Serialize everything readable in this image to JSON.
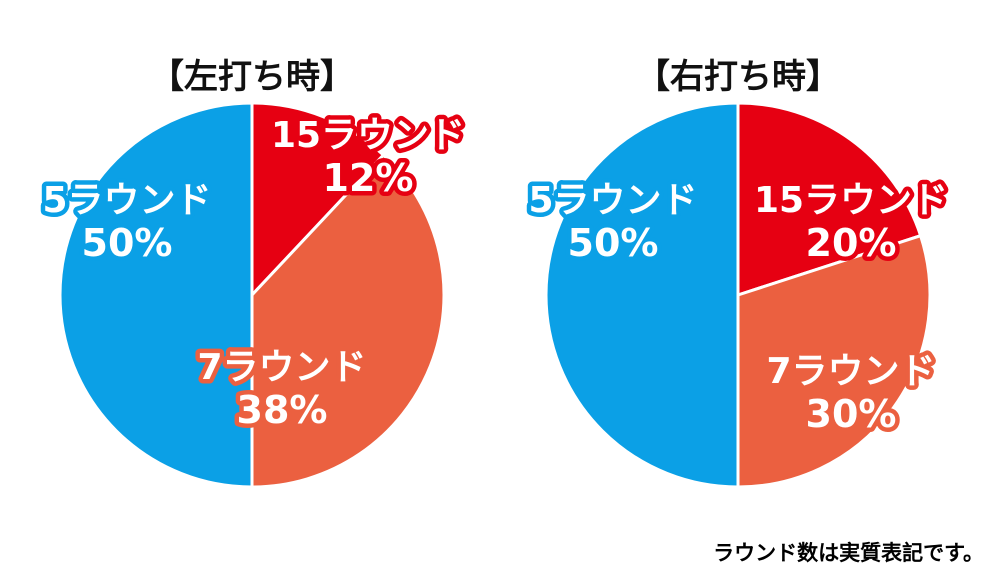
{
  "colors": {
    "round_15": "#e60012",
    "round_7": "#eb6040",
    "round_5": "#0ba0e6",
    "title": "#111111",
    "label_text": "#ffffff"
  },
  "chart_data": [
    {
      "type": "pie",
      "title": "【左打ち時】",
      "slices": [
        {
          "name": "15ラウンド",
          "value": 12,
          "value_label": "12%",
          "color_key": "round_15"
        },
        {
          "name": "7ラウンド",
          "value": 38,
          "value_label": "38%",
          "color_key": "round_7"
        },
        {
          "name": "5ラウンド",
          "value": 50,
          "value_label": "50%",
          "color_key": "round_5"
        }
      ]
    },
    {
      "type": "pie",
      "title": "【右打ち時】",
      "slices": [
        {
          "name": "15ラウンド",
          "value": 20,
          "value_label": "20%",
          "color_key": "round_15"
        },
        {
          "name": "7ラウンド",
          "value": 30,
          "value_label": "30%",
          "color_key": "round_7"
        },
        {
          "name": "5ラウンド",
          "value": 50,
          "value_label": "50%",
          "color_key": "round_5"
        }
      ]
    }
  ],
  "footnote": "ラウンド数は実質表記です。"
}
